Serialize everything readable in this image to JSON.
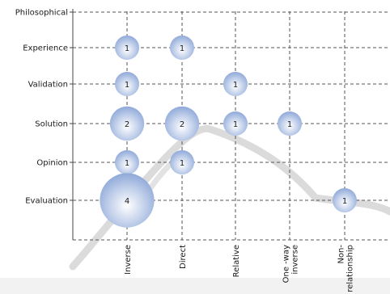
{
  "chart_data": {
    "type": "bubble",
    "title": "",
    "y_categories": [
      "Philosophical",
      "Experience",
      "Validation",
      "Solution",
      "Opinion",
      "Evaluation"
    ],
    "x_categories": [
      "Inverse",
      "Direct",
      "Relative",
      "One -way inverse",
      "Non-relationship"
    ],
    "x_labels_display": [
      [
        "Inverse"
      ],
      [
        "Direct"
      ],
      [
        "Relative"
      ],
      [
        "One -way",
        "inverse"
      ],
      [
        "Non-",
        "relationship"
      ]
    ],
    "points": [
      {
        "x": "Inverse",
        "y": "Experience",
        "value": 1
      },
      {
        "x": "Direct",
        "y": "Experience",
        "value": 1
      },
      {
        "x": "Inverse",
        "y": "Validation",
        "value": 1
      },
      {
        "x": "Relative",
        "y": "Validation",
        "value": 1
      },
      {
        "x": "Inverse",
        "y": "Solution",
        "value": 2
      },
      {
        "x": "Direct",
        "y": "Solution",
        "value": 2
      },
      {
        "x": "Relative",
        "y": "Solution",
        "value": 1
      },
      {
        "x": "One -way inverse",
        "y": "Solution",
        "value": 1
      },
      {
        "x": "Inverse",
        "y": "Opinion",
        "value": 1
      },
      {
        "x": "Direct",
        "y": "Opinion",
        "value": 1
      },
      {
        "x": "Inverse",
        "y": "Evaluation",
        "value": 4
      },
      {
        "x": "Non-relationship",
        "y": "Evaluation",
        "value": 1
      }
    ],
    "grid": "dashed",
    "legend": "none"
  },
  "colors": {
    "bubble_fill_light": "#ffffff",
    "bubble_fill_dark": "#8fa9d9",
    "grid_line": "#555555",
    "axis_line": "#444444",
    "text": "#1a1a1a",
    "watermark": "#b8b8b8"
  }
}
